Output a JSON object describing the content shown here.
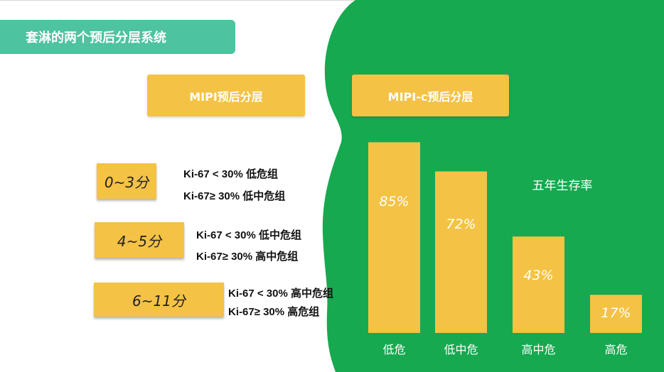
{
  "title": "套淋的两个预后分层系统",
  "systems": {
    "mipi": "MIPI预后分层",
    "mipic": "MIPI-c预后分层"
  },
  "groups": [
    {
      "score": "0~3分",
      "line1": "Ki-67 < 30% 低危组",
      "line2": "Ki-67≥ 30% 低中危组"
    },
    {
      "score": "4~5分",
      "line1": "Ki-67 < 30% 低中危组",
      "line2": "Ki-67≥ 30% 高中危组"
    },
    {
      "score": "6~11分",
      "line1": "Ki-67 < 30% 高中危组",
      "line2": "Ki-67≥ 30% 高危组"
    }
  ],
  "colors": {
    "green": "#16a94f",
    "teal": "#4dc3a0",
    "yellow": "#f4c245"
  },
  "chart_data": {
    "type": "bar",
    "title": "五年生存率",
    "categories": [
      "低危",
      "低中危",
      "高中危",
      "高危"
    ],
    "values": [
      85,
      72,
      43,
      17
    ],
    "value_labels": [
      "85%",
      "72%",
      "43%",
      "17%"
    ],
    "ylim": [
      0,
      100
    ],
    "grid": false
  }
}
